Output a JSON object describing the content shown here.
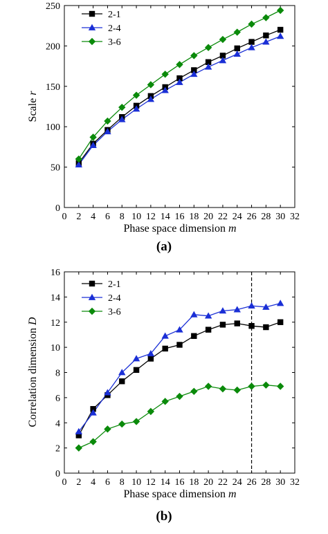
{
  "chart_data": [
    {
      "type": "line",
      "panel_label": "(a)",
      "xlabel": "Phase space dimension",
      "xlabel_var": "m",
      "ylabel": "Scale",
      "ylabel_var": "r",
      "xlim": [
        0,
        32
      ],
      "ylim": [
        0,
        250
      ],
      "xticks": [
        0,
        2,
        4,
        6,
        8,
        10,
        12,
        14,
        16,
        18,
        20,
        22,
        24,
        26,
        28,
        30,
        32
      ],
      "yticks": [
        0,
        50,
        100,
        150,
        200,
        250
      ],
      "x": [
        2,
        4,
        6,
        8,
        10,
        12,
        14,
        16,
        18,
        20,
        22,
        24,
        26,
        28,
        30
      ],
      "grid": false,
      "legend_position": "top-left",
      "series": [
        {
          "name": "2-1",
          "marker": "square",
          "color": "#000000",
          "line_color": "#000000",
          "values": [
            55,
            79,
            96,
            112,
            126,
            138,
            149,
            160,
            170,
            180,
            188,
            197,
            205,
            213,
            220
          ]
        },
        {
          "name": "2-4",
          "marker": "triangle",
          "color": "#1a2fd6",
          "line_color": "#1a2fd6",
          "values": [
            53,
            77,
            94,
            109,
            122,
            134,
            145,
            155,
            165,
            174,
            182,
            190,
            198,
            205,
            212
          ]
        },
        {
          "name": "3-6",
          "marker": "diamond",
          "color": "#0a8a0a",
          "line_color": "#0a8a0a",
          "values": [
            60,
            87,
            107,
            124,
            139,
            152,
            165,
            177,
            188,
            198,
            208,
            217,
            227,
            235,
            244
          ]
        }
      ]
    },
    {
      "type": "line",
      "panel_label": "(b)",
      "xlabel": "Phase space dimension",
      "xlabel_var": "m",
      "ylabel": "Correlation dimension",
      "ylabel_var": "D",
      "xlim": [
        0,
        32
      ],
      "ylim": [
        0,
        16
      ],
      "xticks": [
        0,
        2,
        4,
        6,
        8,
        10,
        12,
        14,
        16,
        18,
        20,
        22,
        24,
        26,
        28,
        30,
        32
      ],
      "yticks": [
        0,
        2,
        4,
        6,
        8,
        10,
        12,
        14,
        16
      ],
      "x": [
        2,
        4,
        6,
        8,
        10,
        12,
        14,
        16,
        18,
        20,
        22,
        24,
        26,
        28,
        30
      ],
      "grid": false,
      "legend_position": "top-left",
      "reference_line": {
        "x": 26,
        "style": "dashed"
      },
      "series": [
        {
          "name": "2-1",
          "marker": "square",
          "color": "#000000",
          "line_color": "#000000",
          "values": [
            3.0,
            5.1,
            6.2,
            7.3,
            8.2,
            9.1,
            9.9,
            10.2,
            10.9,
            11.4,
            11.8,
            11.9,
            11.7,
            11.6,
            12.0
          ]
        },
        {
          "name": "2-4",
          "marker": "triangle",
          "color": "#1a2fd6",
          "line_color": "#1a2fd6",
          "values": [
            3.3,
            4.8,
            6.4,
            8.0,
            9.1,
            9.5,
            10.9,
            11.4,
            12.6,
            12.5,
            12.9,
            13.0,
            13.3,
            13.2,
            13.5
          ]
        },
        {
          "name": "3-6",
          "marker": "diamond",
          "color": "#0a8a0a",
          "line_color": "#0a8a0a",
          "values": [
            2.0,
            2.5,
            3.5,
            3.9,
            4.1,
            4.9,
            5.7,
            6.1,
            6.5,
            6.9,
            6.7,
            6.6,
            6.9,
            7.0,
            6.9
          ]
        }
      ]
    }
  ]
}
